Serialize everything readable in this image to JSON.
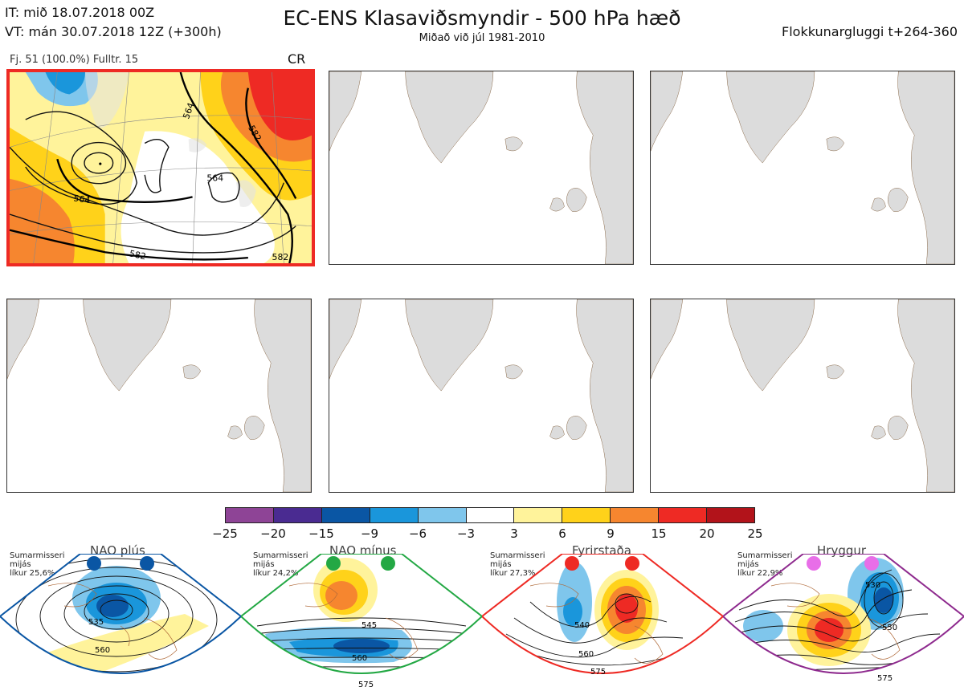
{
  "header": {
    "init_time": "IT: mið 18.07.2018 00Z",
    "valid_time": "VT: mán 30.07.2018 12Z  (+300h)",
    "title": "EC-ENS Klasaviðsmyndir - 500 hPa hæð",
    "subtitle": "Miðað við júl 1981-2010",
    "window": "Flokkunargluggi t+264-360"
  },
  "cluster": {
    "info": "Fj. 51 (100.0%)   Fulltr. 15",
    "regime_code": "CR",
    "contour_labels": [
      "564",
      "564",
      "582",
      "582",
      "564",
      "582"
    ]
  },
  "colorbar": {
    "ticks": [
      "−25",
      "−20",
      "−15",
      "−9",
      "−6",
      "−3",
      "3",
      "6",
      "9",
      "15",
      "20",
      "25"
    ],
    "colors": [
      "#8e4496",
      "#4a2b91",
      "#0a56a4",
      "#1a96db",
      "#7fc6ec",
      "#ffffff",
      "#fff39b",
      "#ffd21a",
      "#f6862f",
      "#ee2a24",
      "#b2131a"
    ]
  },
  "regimes": [
    {
      "name": "NAO plús",
      "season": "Sumarmisseri",
      "mean": "mijás",
      "prob": "líkur 25,6%",
      "color": "#0a56a4",
      "labels": [
        "535",
        "560"
      ]
    },
    {
      "name": "NAO mínus",
      "season": "Sumarmisseri",
      "mean": "mijás",
      "prob": "líkur 24,2%",
      "color": "#23a844",
      "labels": [
        "545",
        "560",
        "575"
      ]
    },
    {
      "name": "Fyrirstaða",
      "season": "Sumarmisseri",
      "mean": "mijás",
      "prob": "líkur 27,3%",
      "color": "#ee2a24",
      "labels": [
        "540",
        "560",
        "575"
      ]
    },
    {
      "name": "Hryggur",
      "season": "Sumarmisseri",
      "mean": "mijás",
      "prob": "líkur 22,9%",
      "color": "#8e2a8e",
      "labels": [
        "530",
        "550",
        "575"
      ]
    }
  ]
}
